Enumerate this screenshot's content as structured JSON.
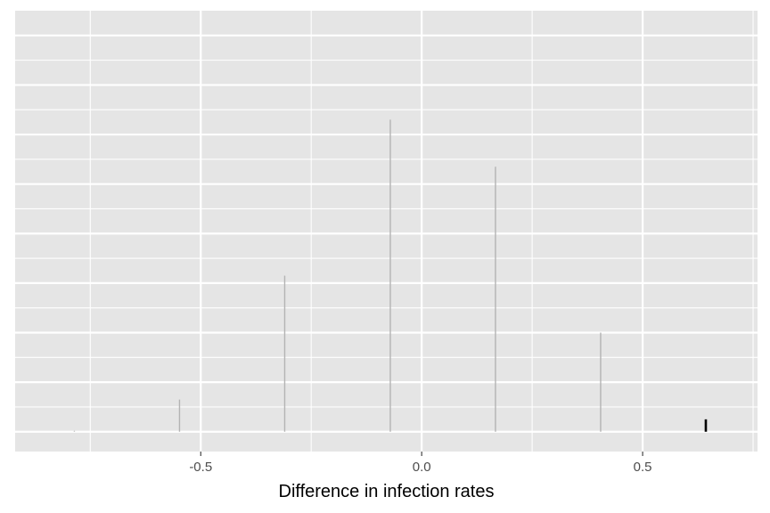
{
  "chart_data": {
    "type": "bar",
    "xlabel": "Difference in infection rates",
    "ylabel": "",
    "title": "",
    "xlim": [
      -0.92,
      0.76
    ],
    "ylim": [
      -0.4,
      8.5
    ],
    "x_ticks": [
      {
        "value": -0.5,
        "label": "-0.5"
      },
      {
        "value": 0.0,
        "label": "0.0"
      },
      {
        "value": 0.5,
        "label": "0.5"
      }
    ],
    "x_minor_ticks": [
      -0.75,
      -0.25,
      0.25,
      0.75
    ],
    "y_major_ticks": [
      0,
      1,
      2,
      3,
      4,
      5,
      6,
      7,
      8
    ],
    "y_minor_ticks": [
      0.5,
      1.5,
      2.5,
      3.5,
      4.5,
      5.5,
      6.5,
      7.5
    ],
    "y_tick_labels_visible": false,
    "grid": true,
    "panel_color": "#e5e5e5",
    "grid_color": "#ffffff",
    "bars": [
      {
        "x": -0.786,
        "value": 0.02,
        "color": "#bdbdbd"
      },
      {
        "x": -0.548,
        "value": 0.65,
        "color": "#b3b3b3"
      },
      {
        "x": -0.31,
        "value": 3.15,
        "color": "#b3b3b3"
      },
      {
        "x": -0.071,
        "value": 6.3,
        "color": "#b3b3b3"
      },
      {
        "x": 0.167,
        "value": 5.35,
        "color": "#b3b3b3"
      },
      {
        "x": 0.405,
        "value": 2.0,
        "color": "#b3b3b3"
      },
      {
        "x": 0.643,
        "value": 0.25,
        "color": "#000000"
      }
    ]
  }
}
